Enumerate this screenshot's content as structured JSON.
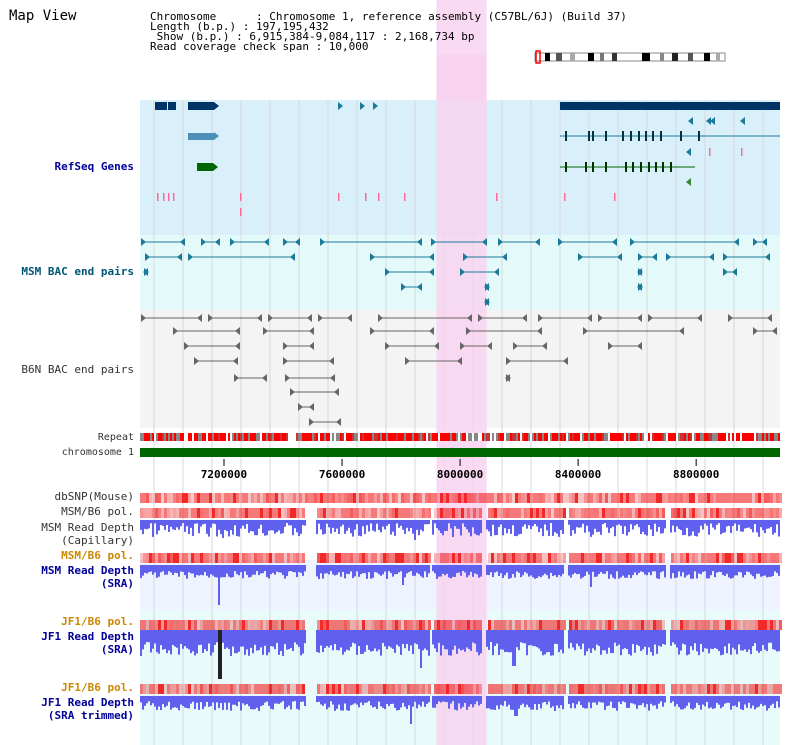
{
  "page": {
    "title": "Map View"
  },
  "info": {
    "chromosome_line": "Chromosome      : Chromosome 1, reference assembly (C57BL/6J) (Build 37)",
    "length_line": "Length (b.p.) : 197,195,432",
    "show_line": " Show (b.p.) : 6,915,384-9,084,117 : 2,168,734 bp",
    "coverage_line": "Read coverage check span : 10,000"
  },
  "tracks": {
    "refseq": "RefSeq Genes",
    "msm_bac": "MSM BAC end pairs",
    "b6n_bac": "B6N BAC end pairs",
    "repeat": "Repeat",
    "chromosome": "chromosome 1",
    "dbsnp": "dbSNP(Mouse)",
    "msm_b6_pol_1": "MSM/B6 pol.",
    "msm_depth_cap_1": "MSM Read Depth",
    "msm_depth_cap_2": "(Capillary)",
    "msm_b6_pol_2": "MSM/B6 pol.",
    "msm_depth_sra_1": "MSM Read Depth",
    "msm_depth_sra_2": "(SRA)",
    "jf1_pol_1": "JF1/B6 pol.",
    "jf1_depth_1": "JF1 Read Depth",
    "jf1_depth_2": "(SRA)",
    "jf1_pol_2": "JF1/B6 pol.",
    "jf1_trim_1": "JF1 Read Depth",
    "jf1_trim_2": "(SRA trimmed)"
  },
  "axis": {
    "ticks": [
      {
        "value": 7200000,
        "label": "7200000"
      },
      {
        "value": 7600000,
        "label": "7600000"
      },
      {
        "value": 8000000,
        "label": "8000000"
      },
      {
        "value": 8400000,
        "label": "8400000"
      },
      {
        "value": 8800000,
        "label": "8800000"
      }
    ],
    "start": 6915384,
    "end": 9084117,
    "highlight": [
      7920000,
      8090000
    ]
  },
  "colors": {
    "refseq_bg": "#d9f0fa",
    "msm_bg": "#e4fafa",
    "b6n_bg": "#f4f4f4",
    "highlight": "#f8d3f0",
    "gene_dark": "#003366",
    "gene_light": "#4d8fb8",
    "gene_green": "#006600",
    "bac_msm": "#1b7a9a",
    "bac_b6n": "#666666",
    "depth": "#6060ee",
    "label_blue": "#000099",
    "label_orange": "#cc8800",
    "chromosome_bar": "#006600"
  }
}
